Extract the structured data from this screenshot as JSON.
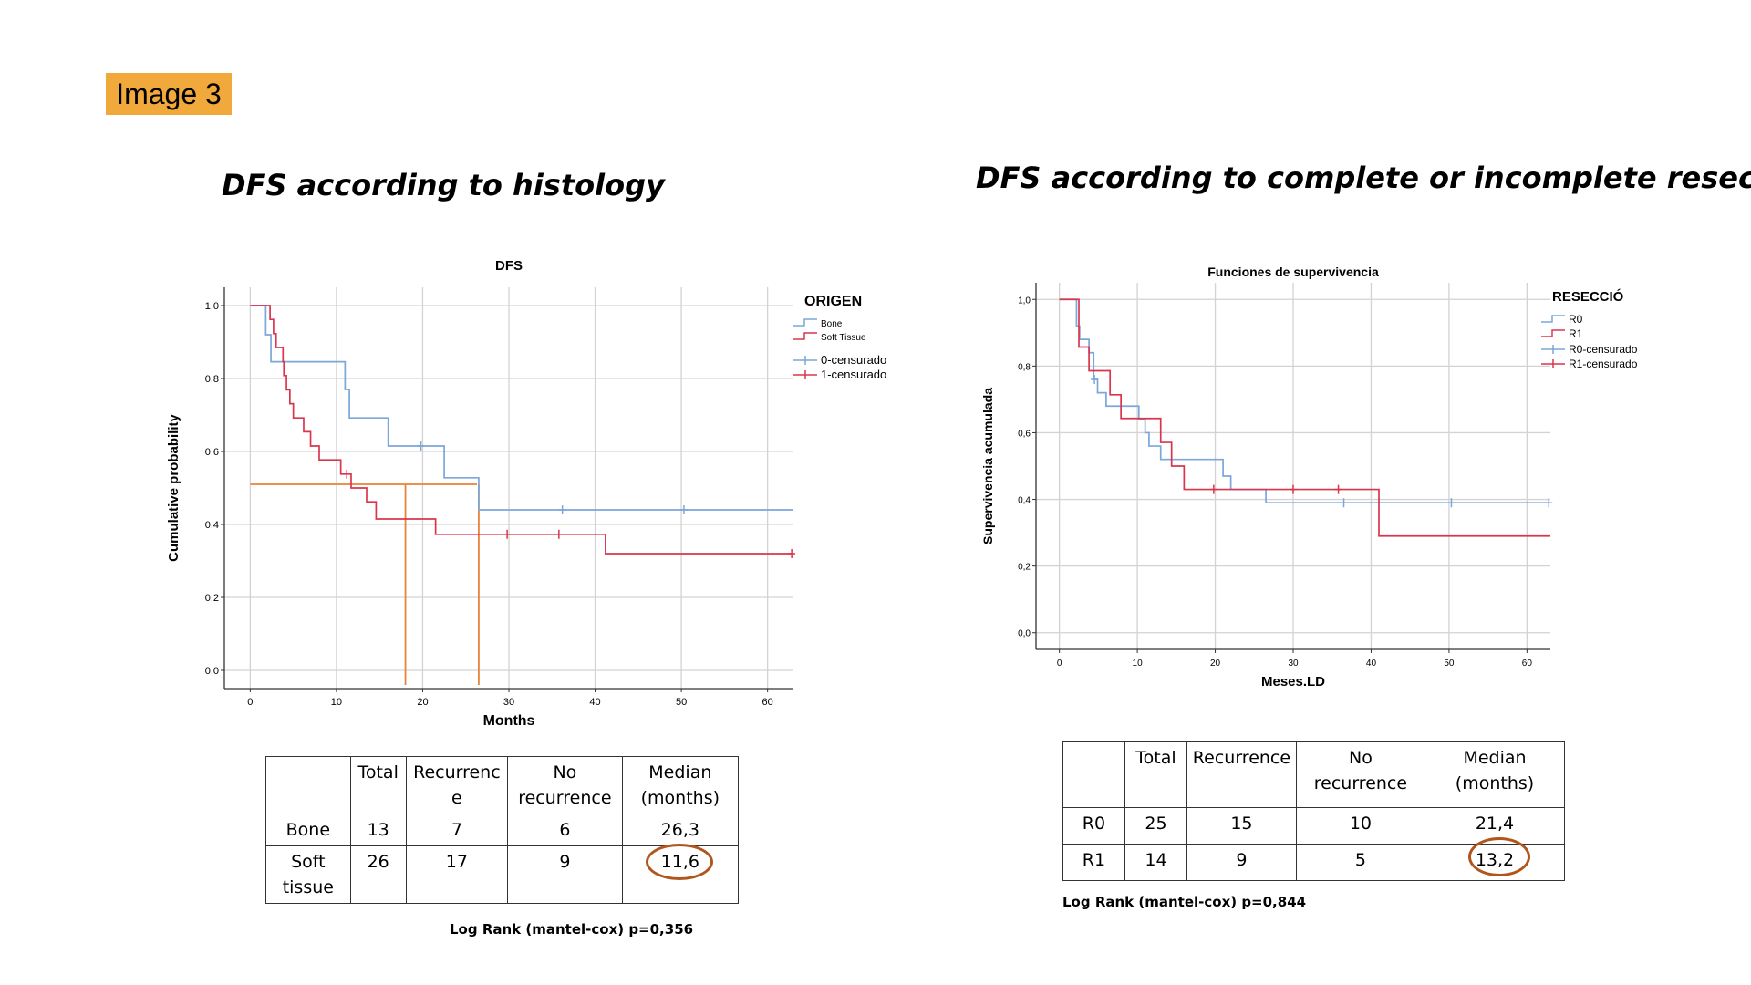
{
  "badge": "Image 3",
  "headings": {
    "left": "DFS according to histology",
    "right": "DFS according to complete or incomplete resection"
  },
  "chart_data": [
    {
      "type": "line",
      "subtype": "kaplan-meier",
      "title": "DFS",
      "xlabel": "Months",
      "ylabel": "Cumulative probability",
      "xlim": [
        -3,
        63
      ],
      "ylim": [
        -0.05,
        1.05
      ],
      "xticks": [
        "0",
        "10",
        "20",
        "30",
        "40",
        "50",
        "60"
      ],
      "yticks": [
        "0,0",
        "0,2",
        "0,4",
        "0,6",
        "0,8",
        "1,0"
      ],
      "grid": true,
      "legend": {
        "title": "ORIGEN",
        "position": "top-right",
        "entries": [
          "Bone",
          "Soft Tissue",
          "0-censurado",
          "1-censurado"
        ]
      },
      "series": [
        {
          "name": "Bone",
          "color": "#7ba7d9",
          "steps": [
            [
              0,
              1.0
            ],
            [
              1.8,
              0.92
            ],
            [
              2.4,
              0.846
            ],
            [
              11,
              0.77
            ],
            [
              11.5,
              0.692
            ],
            [
              16,
              0.615
            ],
            [
              22.5,
              0.528
            ],
            [
              26.5,
              0.44
            ],
            [
              63,
              0.44
            ]
          ],
          "censored_at": [
            [
              19.8,
              0.615
            ],
            [
              36.2,
              0.44
            ],
            [
              50.3,
              0.44
            ]
          ]
        },
        {
          "name": "Soft Tissue",
          "color": "#d9364e",
          "steps": [
            [
              0,
              1.0
            ],
            [
              2.3,
              0.962
            ],
            [
              2.7,
              0.923
            ],
            [
              3.0,
              0.885
            ],
            [
              3.8,
              0.846
            ],
            [
              3.9,
              0.808
            ],
            [
              4.2,
              0.769
            ],
            [
              4.6,
              0.731
            ],
            [
              5.0,
              0.692
            ],
            [
              6.2,
              0.654
            ],
            [
              7.0,
              0.615
            ],
            [
              8.0,
              0.577
            ],
            [
              10.5,
              0.538
            ],
            [
              11.7,
              0.5
            ],
            [
              13.5,
              0.462
            ],
            [
              14.6,
              0.415
            ],
            [
              21.5,
              0.373
            ],
            [
              41.2,
              0.32
            ],
            [
              63,
              0.32
            ]
          ],
          "censored_at": [
            [
              11.2,
              0.538
            ],
            [
              29.8,
              0.373
            ],
            [
              35.8,
              0.373
            ],
            [
              62.8,
              0.32
            ]
          ]
        }
      ],
      "median_guides": {
        "color": "#e8833a",
        "y": 0.51,
        "x_start": 0,
        "x_end": 26.3,
        "verticals": [
          18,
          26.5
        ],
        "bottom_y": -0.04
      }
    },
    {
      "type": "line",
      "subtype": "kaplan-meier",
      "title": "Funciones de supervivencia",
      "xlabel": "Meses.LD",
      "ylabel": "Supervivencia acumulada",
      "xlim": [
        -3,
        63
      ],
      "ylim": [
        -0.05,
        1.05
      ],
      "xticks": [
        "0",
        "10",
        "20",
        "30",
        "40",
        "50",
        "60"
      ],
      "yticks": [
        "0,0",
        "0,2",
        "0,4",
        "0,6",
        "0,8",
        "1,0"
      ],
      "grid": true,
      "legend": {
        "title": "RESECCIÓ",
        "position": "top-right",
        "entries": [
          "R0",
          "R1",
          "R0-censurado",
          "R1-censurado"
        ]
      },
      "series": [
        {
          "name": "R0",
          "color": "#7ba7d9",
          "steps": [
            [
              0,
              1.0
            ],
            [
              2.2,
              0.92
            ],
            [
              2.6,
              0.88
            ],
            [
              3.8,
              0.84
            ],
            [
              4.4,
              0.76
            ],
            [
              4.9,
              0.72
            ],
            [
              6.0,
              0.68
            ],
            [
              10.2,
              0.64
            ],
            [
              11.0,
              0.6
            ],
            [
              11.5,
              0.56
            ],
            [
              13.0,
              0.52
            ],
            [
              21.0,
              0.47
            ],
            [
              22.0,
              0.43
            ],
            [
              26.5,
              0.39
            ],
            [
              63,
              0.39
            ]
          ],
          "censored_at": [
            [
              4.5,
              0.76
            ],
            [
              36.5,
              0.39
            ],
            [
              50.3,
              0.39
            ],
            [
              62.8,
              0.39
            ]
          ]
        },
        {
          "name": "R1",
          "color": "#d9364e",
          "steps": [
            [
              0,
              1.0
            ],
            [
              2.5,
              0.857
            ],
            [
              3.8,
              0.786
            ],
            [
              6.5,
              0.714
            ],
            [
              7.9,
              0.643
            ],
            [
              13.0,
              0.571
            ],
            [
              14.4,
              0.5
            ],
            [
              16.0,
              0.43
            ],
            [
              41.0,
              0.29
            ],
            [
              63,
              0.29
            ]
          ],
          "censored_at": [
            [
              19.8,
              0.43
            ],
            [
              30.0,
              0.43
            ],
            [
              35.8,
              0.43
            ]
          ]
        }
      ]
    }
  ],
  "tables": {
    "left": {
      "headers": [
        "",
        "Total",
        "Recurrenc\ne",
        "No\nrecurrence",
        "Median\n(months)"
      ],
      "rows": [
        [
          "Bone",
          "13",
          "7",
          "6",
          "26,3"
        ],
        [
          "Soft\ntissue",
          "26",
          "17",
          "9",
          "11,6"
        ]
      ],
      "note": "Log Rank (mantel-cox) p=0,356"
    },
    "right": {
      "headers": [
        "",
        "Total",
        "Recurrence",
        "No recurrence",
        "Median\n(months)"
      ],
      "rows": [
        [
          "R0",
          "25",
          "15",
          "10",
          "21,4"
        ],
        [
          "R1",
          "14",
          "9",
          "5",
          "13,2"
        ]
      ],
      "note": "Log Rank (mantel-cox) p=0,844"
    }
  }
}
